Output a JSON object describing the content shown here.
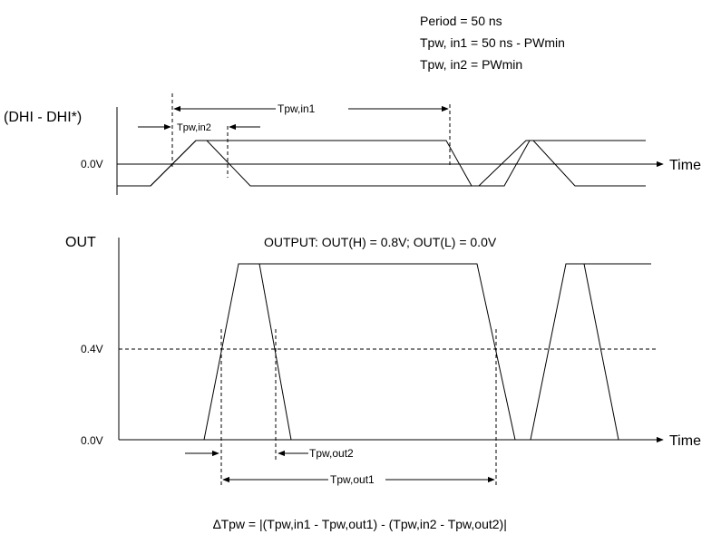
{
  "notes": {
    "line1": "Period = 50 ns",
    "line2": "Tpw, in1 = 50 ns - PWmin",
    "line3": "Tpw, in2 = PWmin"
  },
  "input_panel": {
    "signal_label": "(DHI - DHI*)",
    "zero_label": "0.0V",
    "time_label": "Time",
    "tpw_in1_label": "Tpw,in1",
    "tpw_in2_label": "Tpw,in2"
  },
  "output_panel": {
    "signal_label": "OUT",
    "output_note": "OUTPUT:  OUT(H) = 0.8V; OUT(L) = 0.0V",
    "mid_label": "0.4V",
    "zero_label": "0.0V",
    "time_label": "Time",
    "tpw_out1_label": "Tpw,out1",
    "tpw_out2_label": "Tpw,out2"
  },
  "formula": "∆Tpw = |(Tpw,in1 - Tpw,out1) - (Tpw,in2 - Tpw,out2)|",
  "colors": {
    "stroke": "#000000",
    "background": "#ffffff"
  }
}
